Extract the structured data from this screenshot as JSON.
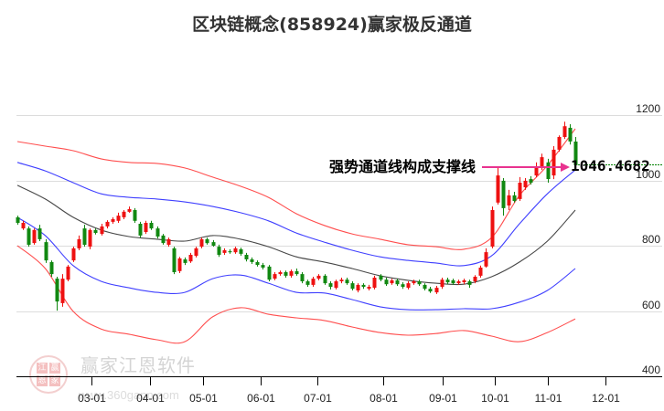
{
  "title": "区块链概念(858924)赢家极反通道",
  "watermark": {
    "logo_chars": [
      "江",
      "赢",
      "恩",
      "家"
    ],
    "brand": "赢家江恩软件",
    "url": "www.360gann.com"
  },
  "annotation": {
    "text": "强势通道线构成支撑线",
    "value_label": "1046.4682"
  },
  "colors": {
    "up": "#ee1111",
    "down": "#118811",
    "band_outer": "#ff3b3b",
    "band_inner": "#2a2aff",
    "band_middle": "#333333",
    "arrow": "#e8338f",
    "price_line": "#008000",
    "grid": "#dcdcdc",
    "axis": "#000000",
    "label": "#222222"
  },
  "chart_data": {
    "type": "candlestick",
    "title": "区块链概念(858924)赢家极反通道",
    "xlabel": "",
    "ylabel": "",
    "grid": true,
    "legend": "none",
    "y_axis": {
      "ticks": [
        400,
        600,
        800,
        1000,
        1200
      ],
      "labels": [
        "400",
        "600",
        "800",
        "1000",
        "1200"
      ],
      "range": [
        400,
        1230
      ],
      "position": "right"
    },
    "x_axis": {
      "ticks": [
        {
          "label": "03-01",
          "pos": 13.2
        },
        {
          "label": "04-01",
          "pos": 23.85
        },
        {
          "label": "05-01",
          "pos": 33.36
        },
        {
          "label": "06-01",
          "pos": 43.6
        },
        {
          "label": "07-01",
          "pos": 53.77
        },
        {
          "label": "08-01",
          "pos": 65.57
        },
        {
          "label": "09-01",
          "pos": 76.23
        },
        {
          "label": "10-01",
          "pos": 85.57
        },
        {
          "label": "11-01",
          "pos": 95.08
        },
        {
          "label": "12-01",
          "pos": 105.4
        }
      ]
    },
    "candle_format": [
      "open",
      "high",
      "low",
      "close"
    ],
    "candles": [
      [
        887,
        892,
        864,
        870
      ],
      [
        853,
        876,
        848,
        870
      ],
      [
        853,
        859,
        797,
        803
      ],
      [
        808,
        853,
        803,
        848
      ],
      [
        853,
        864,
        814,
        820
      ],
      [
        811,
        820,
        747,
        755
      ],
      [
        750,
        755,
        705,
        713
      ],
      [
        699,
        705,
        601,
        629
      ],
      [
        624,
        713,
        613,
        699
      ],
      [
        696,
        741,
        691,
        736
      ],
      [
        755,
        797,
        750,
        792
      ],
      [
        792,
        831,
        786,
        820
      ],
      [
        853,
        864,
        797,
        803
      ],
      [
        797,
        853,
        789,
        848
      ],
      [
        848,
        853,
        834,
        839
      ],
      [
        836,
        867,
        831,
        859
      ],
      [
        859,
        878,
        853,
        873
      ],
      [
        873,
        887,
        867,
        881
      ],
      [
        876,
        901,
        870,
        892
      ],
      [
        887,
        909,
        881,
        904
      ],
      [
        904,
        920,
        901,
        912
      ],
      [
        909,
        915,
        870,
        876
      ],
      [
        867,
        873,
        825,
        831
      ],
      [
        842,
        876,
        836,
        870
      ],
      [
        870,
        876,
        848,
        853
      ],
      [
        853,
        859,
        822,
        828
      ],
      [
        831,
        836,
        803,
        808
      ],
      [
        803,
        825,
        797,
        820
      ],
      [
        792,
        797,
        713,
        719
      ],
      [
        722,
        766,
        716,
        761
      ],
      [
        758,
        764,
        741,
        747
      ],
      [
        752,
        778,
        747,
        772
      ],
      [
        769,
        797,
        764,
        792
      ],
      [
        797,
        825,
        792,
        820
      ],
      [
        820,
        825,
        803,
        808
      ],
      [
        811,
        817,
        797,
        800
      ],
      [
        797,
        803,
        766,
        772
      ],
      [
        778,
        792,
        772,
        786
      ],
      [
        783,
        789,
        775,
        780
      ],
      [
        780,
        797,
        775,
        792
      ],
      [
        789,
        794,
        769,
        775
      ],
      [
        772,
        778,
        752,
        758
      ],
      [
        758,
        764,
        744,
        750
      ],
      [
        750,
        755,
        736,
        741
      ],
      [
        741,
        747,
        727,
        733
      ],
      [
        736,
        741,
        691,
        696
      ],
      [
        699,
        719,
        694,
        713
      ],
      [
        713,
        724,
        708,
        719
      ],
      [
        719,
        724,
        702,
        708
      ],
      [
        708,
        727,
        702,
        722
      ],
      [
        722,
        730,
        708,
        713
      ],
      [
        713,
        719,
        685,
        691
      ],
      [
        691,
        696,
        674,
        680
      ],
      [
        680,
        705,
        674,
        699
      ],
      [
        699,
        713,
        694,
        708
      ],
      [
        708,
        713,
        680,
        685
      ],
      [
        685,
        691,
        666,
        674
      ],
      [
        671,
        696,
        666,
        691
      ],
      [
        691,
        702,
        685,
        696
      ],
      [
        696,
        702,
        680,
        685
      ],
      [
        685,
        691,
        663,
        668
      ],
      [
        663,
        685,
        657,
        680
      ],
      [
        680,
        685,
        668,
        674
      ],
      [
        668,
        680,
        663,
        674
      ],
      [
        671,
        708,
        666,
        702
      ],
      [
        708,
        713,
        691,
        696
      ],
      [
        696,
        702,
        677,
        682
      ],
      [
        685,
        699,
        680,
        694
      ],
      [
        694,
        699,
        677,
        682
      ],
      [
        682,
        688,
        668,
        674
      ],
      [
        671,
        691,
        666,
        685
      ],
      [
        685,
        696,
        680,
        691
      ],
      [
        691,
        696,
        677,
        682
      ],
      [
        680,
        685,
        663,
        668
      ],
      [
        668,
        674,
        655,
        660
      ],
      [
        657,
        677,
        652,
        671
      ],
      [
        674,
        702,
        668,
        696
      ],
      [
        696,
        702,
        682,
        688
      ],
      [
        694,
        699,
        680,
        685
      ],
      [
        685,
        696,
        680,
        691
      ],
      [
        688,
        699,
        682,
        694
      ],
      [
        691,
        696,
        671,
        680
      ],
      [
        691,
        710,
        685,
        705
      ],
      [
        708,
        739,
        702,
        733
      ],
      [
        736,
        792,
        733,
        780
      ],
      [
        797,
        920,
        792,
        909
      ],
      [
        932,
        1041,
        926,
        1015
      ],
      [
        999,
        1007,
        892,
        915
      ],
      [
        923,
        971,
        909,
        954
      ],
      [
        954,
        965,
        932,
        937
      ],
      [
        943,
        1010,
        937,
        993
      ],
      [
        979,
        1007,
        971,
        999
      ],
      [
        1004,
        1013,
        987,
        993
      ],
      [
        1015,
        1055,
        1010,
        1043
      ],
      [
        1038,
        1082,
        1032,
        1071
      ],
      [
        1055,
        1066,
        993,
        1004
      ],
      [
        1015,
        1105,
        1004,
        1094
      ],
      [
        1094,
        1138,
        1088,
        1133
      ],
      [
        1133,
        1180,
        1127,
        1166
      ],
      [
        1161,
        1172,
        1110,
        1119
      ],
      [
        1119,
        1133,
        1041,
        1046.4682
      ]
    ],
    "band_sample_index": [
      0,
      5,
      10,
      15,
      20,
      25,
      30,
      35,
      40,
      45,
      50,
      55,
      60,
      65,
      70,
      75,
      80,
      85,
      90,
      95,
      100
    ],
    "series": [
      {
        "name": "upper_outer",
        "color_key": "band_outer",
        "values": [
          1119,
          1105,
          1091,
          1066,
          1055,
          1052,
          1038,
          1010,
          982,
          948,
          898,
          862,
          836,
          820,
          803,
          797,
          789,
          825,
          954,
          1046,
          1158
        ]
      },
      {
        "name": "upper_inner",
        "color_key": "band_inner",
        "values": [
          1055,
          1029,
          993,
          959,
          948,
          943,
          934,
          920,
          901,
          876,
          839,
          811,
          786,
          766,
          755,
          747,
          739,
          769,
          867,
          959,
          1032
        ]
      },
      {
        "name": "middle",
        "color_key": "band_middle",
        "values": [
          985,
          943,
          887,
          848,
          828,
          820,
          814,
          831,
          820,
          797,
          766,
          750,
          730,
          708,
          694,
          685,
          682,
          705,
          750,
          814,
          909
        ]
      },
      {
        "name": "lower_inner",
        "color_key": "band_inner",
        "values": [
          887,
          831,
          739,
          691,
          671,
          657,
          657,
          699,
          710,
          685,
          657,
          655,
          635,
          613,
          604,
          604,
          607,
          607,
          627,
          663,
          730
        ]
      },
      {
        "name": "lower_outer",
        "color_key": "band_outer",
        "values": [
          800,
          730,
          599,
          545,
          529,
          512,
          506,
          582,
          610,
          590,
          579,
          571,
          551,
          534,
          526,
          531,
          540,
          523,
          506,
          534,
          576
        ]
      }
    ],
    "last_close": 1046.4682,
    "annotations": [
      {
        "text": "强势通道线构成支撑线",
        "value": 1046.4682,
        "type": "arrow-to-price"
      }
    ]
  }
}
